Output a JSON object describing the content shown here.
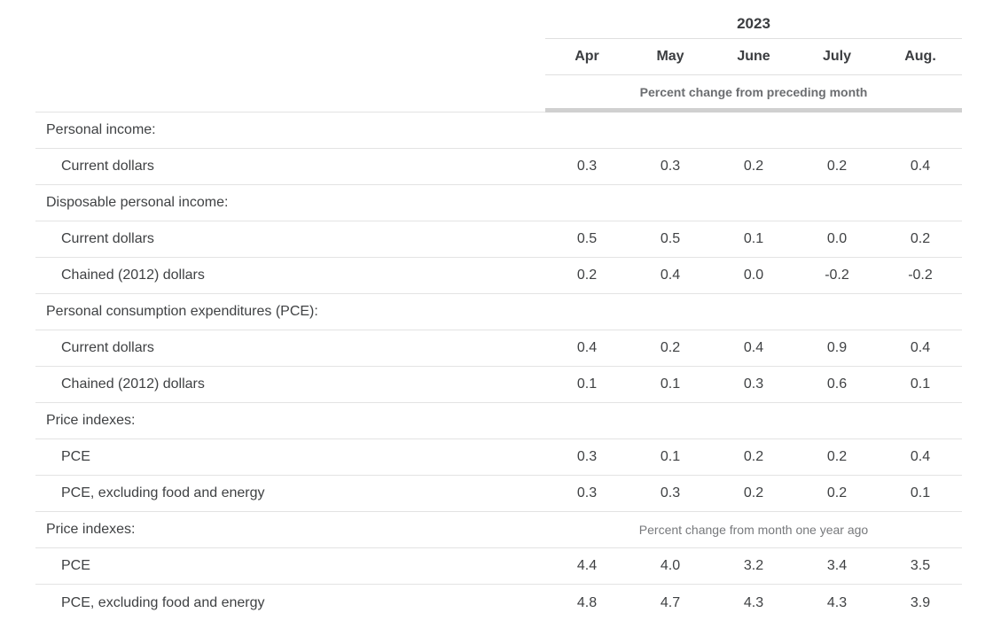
{
  "header": {
    "year": "2023",
    "months": [
      "Apr",
      "May",
      "June",
      "July",
      "Aug."
    ],
    "unit_note": "Percent change from preceding month"
  },
  "rows": [
    {
      "type": "section",
      "label": "Personal income:",
      "note": ""
    },
    {
      "type": "data",
      "label": "Current dollars",
      "values": [
        "0.3",
        "0.3",
        "0.2",
        "0.2",
        "0.4"
      ]
    },
    {
      "type": "section",
      "label": "Disposable personal income:",
      "note": ""
    },
    {
      "type": "data",
      "label": "Current dollars",
      "values": [
        "0.5",
        "0.5",
        "0.1",
        "0.0",
        "0.2"
      ]
    },
    {
      "type": "data",
      "label": "Chained (2012) dollars",
      "values": [
        "0.2",
        "0.4",
        "0.0",
        "-0.2",
        "-0.2"
      ]
    },
    {
      "type": "section",
      "label": "Personal consumption expenditures (PCE):",
      "note": ""
    },
    {
      "type": "data",
      "label": "Current dollars",
      "values": [
        "0.4",
        "0.2",
        "0.4",
        "0.9",
        "0.4"
      ]
    },
    {
      "type": "data",
      "label": "Chained (2012) dollars",
      "values": [
        "0.1",
        "0.1",
        "0.3",
        "0.6",
        "0.1"
      ]
    },
    {
      "type": "section",
      "label": "Price indexes:",
      "note": ""
    },
    {
      "type": "data",
      "label": "PCE",
      "values": [
        "0.3",
        "0.1",
        "0.2",
        "0.2",
        "0.4"
      ]
    },
    {
      "type": "data",
      "label": "PCE, excluding food and energy",
      "values": [
        "0.3",
        "0.3",
        "0.2",
        "0.2",
        "0.1"
      ]
    },
    {
      "type": "section",
      "label": "Price indexes:",
      "note": "Percent change from month one year ago"
    },
    {
      "type": "data",
      "label": "PCE",
      "values": [
        "4.4",
        "4.0",
        "3.2",
        "3.4",
        "3.5"
      ]
    },
    {
      "type": "data",
      "label": "PCE, excluding food and energy",
      "values": [
        "4.8",
        "4.7",
        "4.3",
        "4.3",
        "3.9"
      ]
    }
  ],
  "colors": {
    "text": "#3f4143",
    "header_text": "#3b3d40",
    "unit_note_text": "#6b6d70",
    "year_ago_note_text": "#77797c",
    "thin_border": "#e3e3e3",
    "thick_bar": "#d0d0d0",
    "background": "#ffffff"
  }
}
